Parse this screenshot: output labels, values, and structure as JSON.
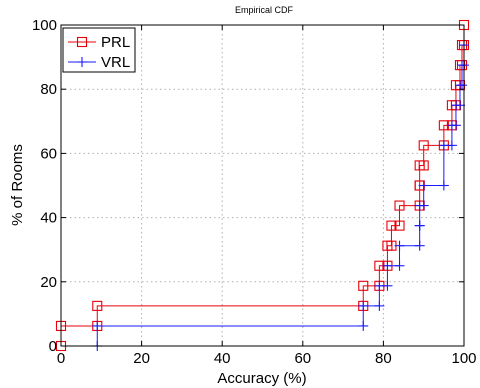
{
  "chart_data": {
    "type": "line",
    "title": "Empirical CDF",
    "xlabel": "Accuracy (%)",
    "ylabel": "% of Rooms",
    "xlim": [
      0,
      100
    ],
    "ylim": [
      0,
      100
    ],
    "xticks": [
      0,
      20,
      40,
      60,
      80,
      100
    ],
    "yticks": [
      0,
      20,
      40,
      60,
      80,
      100
    ],
    "grid": true,
    "legend_position": "top-left",
    "series": [
      {
        "name": "PRL",
        "color": "#e8000b",
        "marker": "square",
        "x": [
          0,
          0,
          9,
          9,
          75,
          75,
          79,
          79,
          81,
          81,
          82,
          82,
          84,
          84,
          89,
          89,
          89,
          89,
          90,
          90,
          95,
          95,
          97,
          97,
          98,
          98,
          99,
          99,
          99.5,
          99.5,
          100,
          100
        ],
        "y": [
          0,
          6.25,
          6.25,
          12.5,
          12.5,
          18.75,
          18.75,
          25,
          25,
          31.25,
          31.25,
          37.5,
          37.5,
          43.75,
          43.75,
          50,
          50,
          56.25,
          56.25,
          62.5,
          62.5,
          68.75,
          68.75,
          75,
          75,
          81.25,
          81.25,
          87.5,
          87.5,
          93.75,
          93.75,
          100
        ]
      },
      {
        "name": "VRL",
        "color": "#1a1aff",
        "marker": "plus",
        "x": [
          9,
          9,
          75,
          75,
          79,
          79,
          81,
          81,
          84,
          84,
          89,
          89,
          89,
          89,
          90,
          90,
          95,
          95,
          97,
          97,
          98,
          98,
          99,
          99,
          99.5,
          99.5,
          100,
          100
        ],
        "y": [
          0,
          6.25,
          6.25,
          12.5,
          12.5,
          18.75,
          18.75,
          25,
          25,
          31.25,
          31.25,
          37.5,
          37.5,
          43.75,
          43.75,
          50,
          50,
          62.5,
          62.5,
          68.75,
          68.75,
          75,
          75,
          81.25,
          81.25,
          87.5,
          87.5,
          93.75
        ]
      }
    ]
  }
}
